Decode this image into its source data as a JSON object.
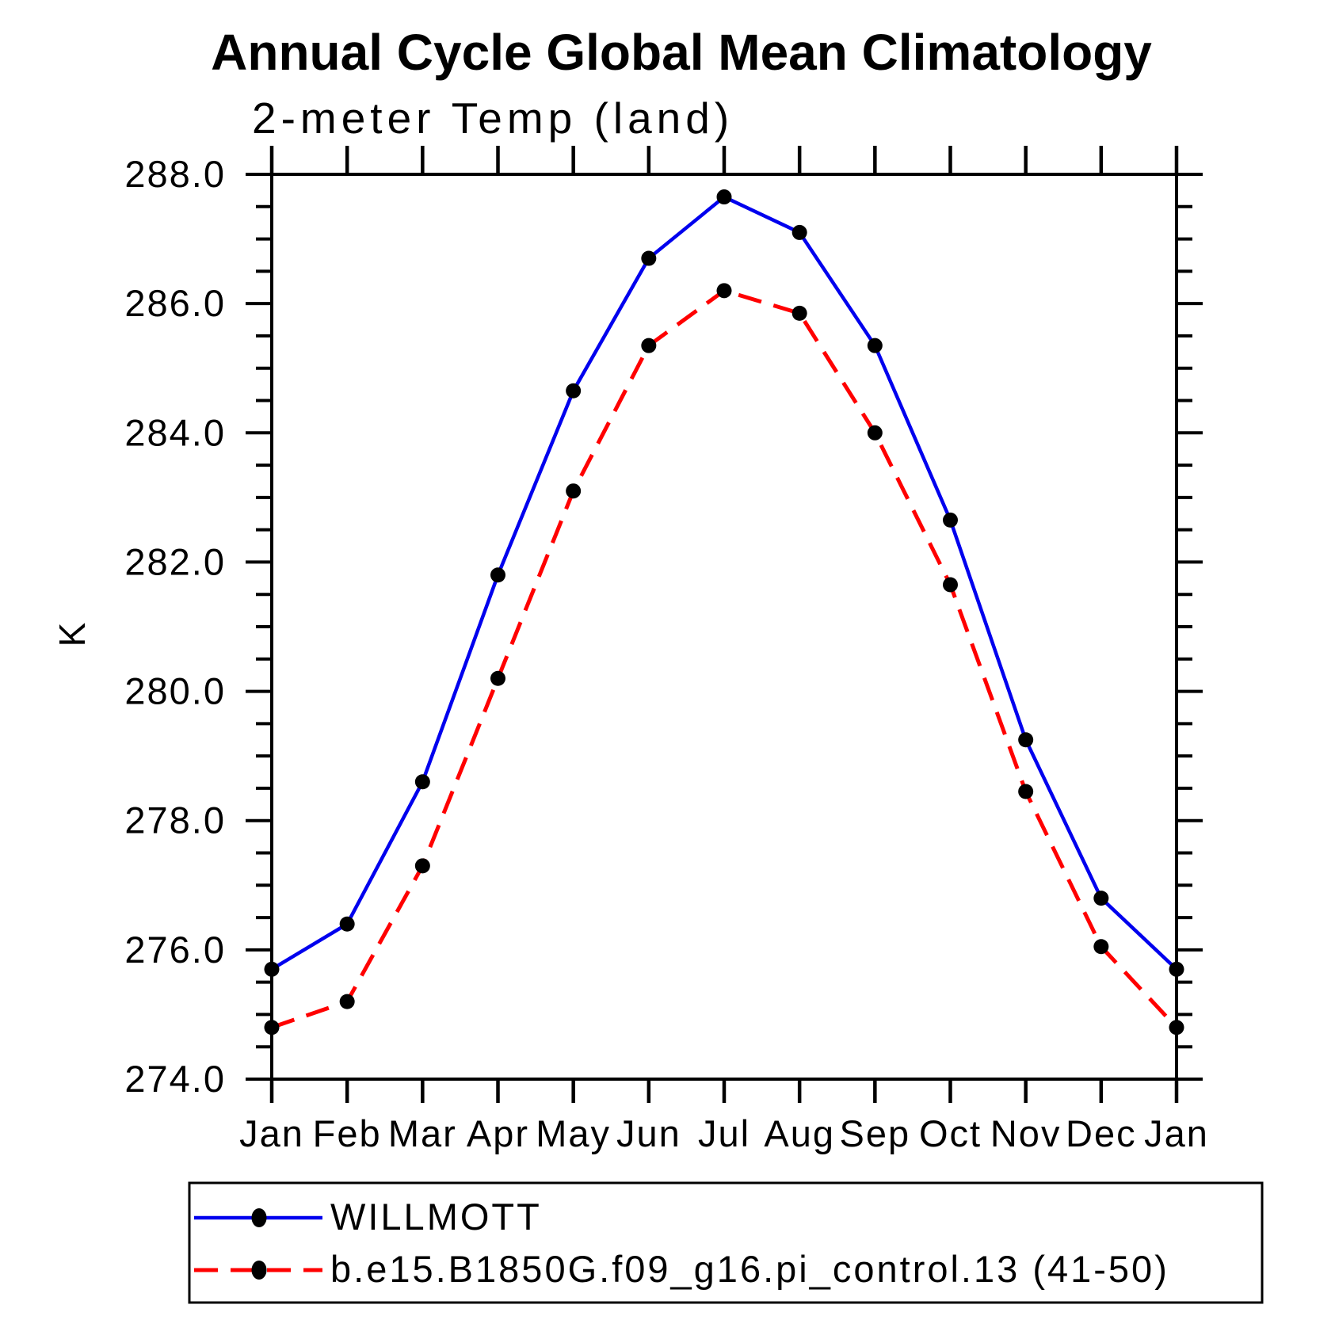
{
  "chart_data": {
    "type": "line",
    "title": "Annual Cycle Global Mean Climatology",
    "subtitle": "2-meter Temp (land)",
    "ylabel": "K",
    "xlabel": "",
    "categories": [
      "Jan",
      "Feb",
      "Mar",
      "Apr",
      "May",
      "Jun",
      "Jul",
      "Aug",
      "Sep",
      "Oct",
      "Nov",
      "Dec",
      "Jan"
    ],
    "ylim": [
      274.0,
      288.0
    ],
    "y_major_tick_labels": [
      "274.0",
      "276.0",
      "278.0",
      "280.0",
      "282.0",
      "284.0",
      "286.0",
      "288.0"
    ],
    "y_major_tick_values": [
      274.0,
      276.0,
      278.0,
      280.0,
      282.0,
      284.0,
      286.0,
      288.0
    ],
    "y_minor_tick_step": 0.5,
    "grid": "off",
    "legend_position": "bottom",
    "marker_color": "#000000",
    "frame_color": "#000000",
    "series": [
      {
        "name": "WILLMOTT",
        "color": "#0000ee",
        "line_style": "solid",
        "marker": "filled-circle",
        "values": [
          275.7,
          276.4,
          278.6,
          281.8,
          284.65,
          286.7,
          287.65,
          287.1,
          285.35,
          282.65,
          279.25,
          276.8,
          275.7
        ]
      },
      {
        "name": "b.e15.B1850G.f09_g16.pi_control.13 (41-50)",
        "color": "#ff0000",
        "line_style": "dashed",
        "marker": "filled-circle",
        "values": [
          274.8,
          275.2,
          277.3,
          280.2,
          283.1,
          285.35,
          286.2,
          285.85,
          284.0,
          281.65,
          278.45,
          276.05,
          274.8
        ]
      }
    ]
  }
}
